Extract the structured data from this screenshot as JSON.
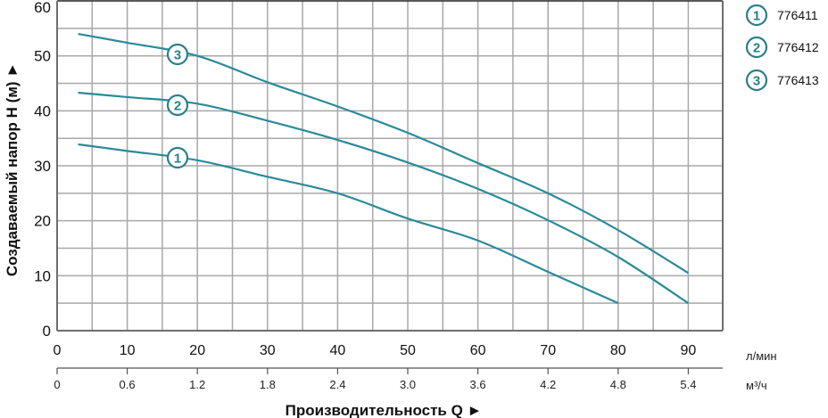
{
  "chart_data": {
    "type": "line",
    "title": "",
    "xlabel": "Производительность Q ►",
    "ylabel": "Создаваемый напор H (м) ►",
    "x_unit_primary": "л/мин",
    "x_unit_secondary": "м³/ч",
    "xlim": [
      0,
      95
    ],
    "ylim": [
      0,
      60
    ],
    "grid": true,
    "legend_position": "right-top",
    "x_ticks_primary": [
      "0",
      "10",
      "20",
      "30",
      "40",
      "50",
      "60",
      "70",
      "80",
      "90"
    ],
    "x_ticks_secondary": [
      "0",
      "0.6",
      "1.2",
      "1.8",
      "2.4",
      "3.0",
      "3.6",
      "4.2",
      "4.8",
      "5.4"
    ],
    "y_ticks": [
      "0",
      "10",
      "20",
      "30",
      "40",
      "50",
      "60"
    ],
    "series": [
      {
        "name": "776411",
        "marker_label": "1",
        "x": [
          3,
          10,
          20,
          30,
          40,
          50,
          60,
          70,
          80
        ],
        "y": [
          33.9,
          32.7,
          31.0,
          28.0,
          25.0,
          20.4,
          16.4,
          10.7,
          5.0
        ]
      },
      {
        "name": "776412",
        "marker_label": "2",
        "x": [
          3,
          10,
          20,
          30,
          40,
          50,
          60,
          70,
          80,
          90
        ],
        "y": [
          43.3,
          42.5,
          41.3,
          38.2,
          34.7,
          30.6,
          25.8,
          20.1,
          13.4,
          5.0
        ]
      },
      {
        "name": "776413",
        "marker_label": "3",
        "x": [
          3,
          10,
          20,
          30,
          40,
          50,
          60,
          70,
          80,
          90
        ],
        "y": [
          54.0,
          52.4,
          50.0,
          45.2,
          40.8,
          36.0,
          30.5,
          25.0,
          18.3,
          10.5
        ]
      }
    ]
  },
  "colors": {
    "curve": "#2a8a9a",
    "marker": "#2a7f8a",
    "grid": "#a8a8a8",
    "axis": "#6e6e6e"
  },
  "legend": [
    {
      "num": "1",
      "label": "776411"
    },
    {
      "num": "2",
      "label": "776412"
    },
    {
      "num": "3",
      "label": "776413"
    }
  ]
}
